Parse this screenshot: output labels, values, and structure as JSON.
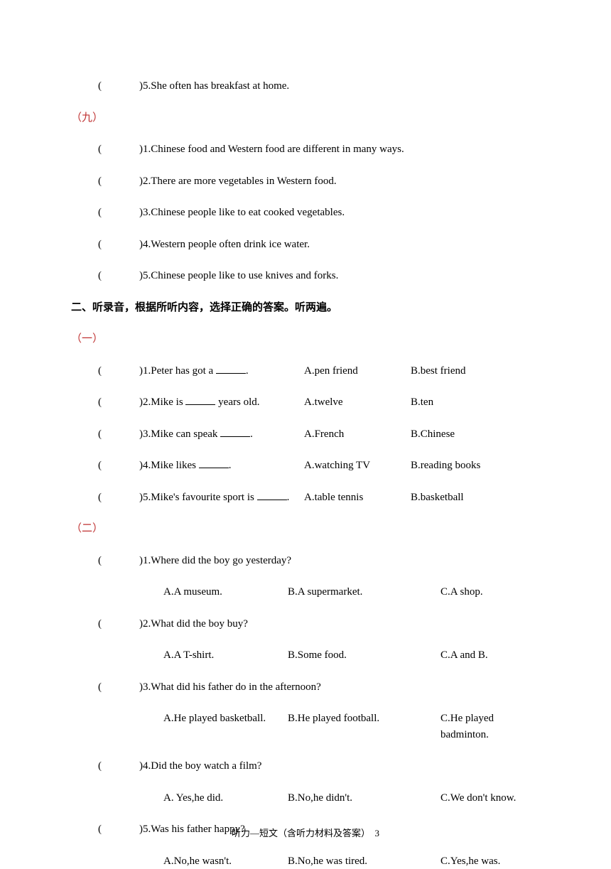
{
  "top_items": [
    {
      "num": "5",
      "text": "She often has breakfast at home."
    }
  ],
  "group_nine": {
    "label": "（九）",
    "items": [
      {
        "num": "1",
        "text": "Chinese food and Western food are different in many ways."
      },
      {
        "num": "2",
        "text": "There are more vegetables in Western food."
      },
      {
        "num": "3",
        "text": "Chinese people like to eat cooked vegetables."
      },
      {
        "num": "4",
        "text": "Western people often drink ice water."
      },
      {
        "num": "5",
        "text": "Chinese people like to use knives and forks."
      }
    ]
  },
  "section2": {
    "title": "二、听录音，根据所听内容，选择正确的答案。听两遍。",
    "group_one": {
      "label": "（一）",
      "items": [
        {
          "num": "1",
          "stem_pre": "Peter has got a ",
          "stem_post": ".",
          "a": "A.pen friend",
          "b": "B.best friend"
        },
        {
          "num": "2",
          "stem_pre": "Mike is ",
          "stem_post": " years old.",
          "a": "A.twelve",
          "b": "B.ten"
        },
        {
          "num": "3",
          "stem_pre": "Mike can speak ",
          "stem_post": ".",
          "a": "A.French",
          "b": "B.Chinese"
        },
        {
          "num": "4",
          "stem_pre": "Mike likes ",
          "stem_post": ".",
          "a": "A.watching TV",
          "b": "B.reading books"
        },
        {
          "num": "5",
          "stem_pre": "Mike's favourite sport is ",
          "stem_post": ".",
          "a": "A.table tennis",
          "b": "B.basketball"
        }
      ]
    },
    "group_two": {
      "label": "（二）",
      "items": [
        {
          "num": "1",
          "q": "Where did the boy go yesterday?",
          "a": "A.A museum.",
          "b": "B.A supermarket.",
          "c": "C.A shop."
        },
        {
          "num": "2",
          "q": "What did the boy buy?",
          "a": "A.A T-shirt.",
          "b": "B.Some food.",
          "c": "C.A and B."
        },
        {
          "num": "3",
          "q": "What did his father do in the afternoon?",
          "a": "A.He played basketball.",
          "b": "B.He played football.",
          "c": "C.He played badminton."
        },
        {
          "num": "4",
          "q": "Did the boy watch a film?",
          "a": "A. Yes,he did.",
          "b": "B.No,he didn't.",
          "c": "C.We don't know."
        },
        {
          "num": "5",
          "q": "Was his father happy?",
          "a": "A.No,he wasn't.",
          "b": "B.No,he was tired.",
          "c": "C.Yes,he was."
        }
      ]
    }
  },
  "footer": {
    "text": "听力—短文（含听力材料及答案）",
    "page": "3"
  }
}
